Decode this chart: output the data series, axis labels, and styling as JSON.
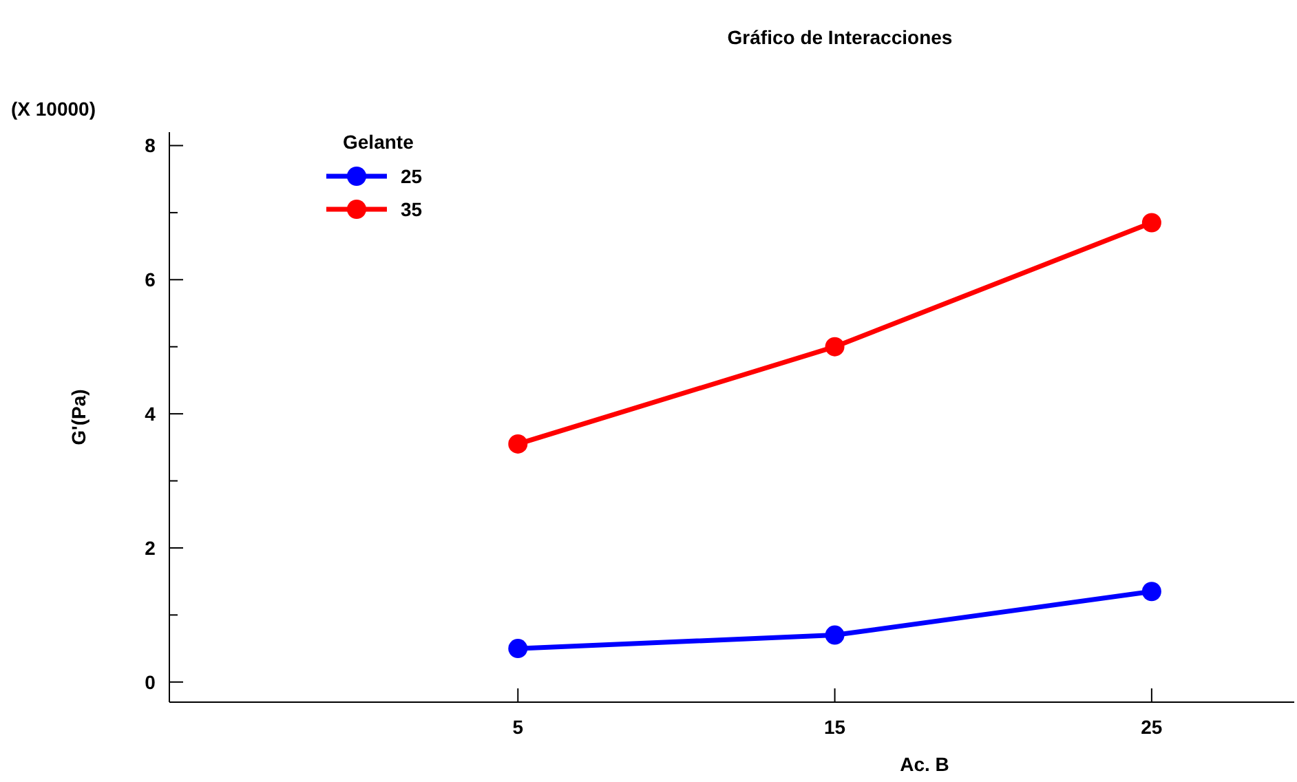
{
  "chart_data": {
    "type": "line",
    "title": "Gráfico de Interacciones",
    "xlabel": "Ac. B",
    "ylabel": "G'(Pa)",
    "legend_title": "Gelante",
    "annotations": [
      "(X 10000)"
    ],
    "x": [
      5,
      15,
      25
    ],
    "series": [
      {
        "name": "25",
        "color": "#0000ff",
        "values": [
          0.5,
          0.7,
          1.35
        ]
      },
      {
        "name": "35",
        "color": "#ff0000",
        "values": [
          3.55,
          5.0,
          6.85
        ]
      }
    ],
    "xlim": [
      -6,
      29.5
    ],
    "xticks": [
      5,
      15,
      25
    ],
    "ylim": [
      -0.3,
      8.2
    ],
    "yticks": [
      0,
      {
        "value": 1,
        "label": null
      },
      2,
      {
        "value": 3,
        "label": null
      },
      4,
      {
        "value": 5,
        "label": null
      },
      6,
      {
        "value": 7,
        "label": null
      },
      8
    ],
    "legend": "top left",
    "marker": "circle",
    "line_style": "solid",
    "grid": false
  }
}
